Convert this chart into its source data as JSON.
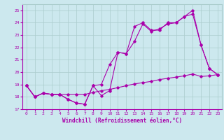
{
  "title": "",
  "xlabel": "Windchill (Refroidissement éolien,°C)",
  "ylabel": "",
  "xlim": [
    -0.5,
    23.5
  ],
  "ylim": [
    17,
    25.5
  ],
  "yticks": [
    17,
    18,
    19,
    20,
    21,
    22,
    23,
    24,
    25
  ],
  "xticks": [
    0,
    1,
    2,
    3,
    4,
    5,
    6,
    7,
    8,
    9,
    10,
    11,
    12,
    13,
    14,
    15,
    16,
    17,
    18,
    19,
    20,
    21,
    22,
    23
  ],
  "background_color": "#cce8ee",
  "grid_color": "#aacccc",
  "line_color": "#aa00aa",
  "line1_y": [
    18.9,
    18.0,
    18.3,
    18.2,
    18.2,
    17.8,
    17.5,
    17.4,
    18.9,
    18.1,
    18.5,
    21.6,
    21.5,
    23.7,
    24.0,
    23.4,
    23.4,
    24.0,
    24.0,
    24.5,
    24.7,
    22.2,
    20.3,
    19.8
  ],
  "line2_y": [
    18.9,
    18.0,
    18.3,
    18.2,
    18.2,
    17.8,
    17.5,
    17.4,
    18.9,
    19.0,
    20.6,
    21.6,
    21.5,
    22.5,
    23.9,
    23.3,
    23.5,
    23.9,
    24.0,
    24.5,
    25.0,
    22.2,
    20.3,
    19.8
  ],
  "line3_y": [
    18.9,
    18.0,
    18.3,
    18.2,
    18.2,
    18.2,
    18.2,
    18.2,
    18.35,
    18.5,
    18.6,
    18.75,
    18.9,
    19.05,
    19.15,
    19.25,
    19.4,
    19.5,
    19.6,
    19.7,
    19.85,
    19.65,
    19.7,
    19.8
  ],
  "marker": "D",
  "markersize": 1.8,
  "linewidth": 0.8,
  "tick_fontsize": 4.5,
  "xlabel_fontsize": 5.5
}
